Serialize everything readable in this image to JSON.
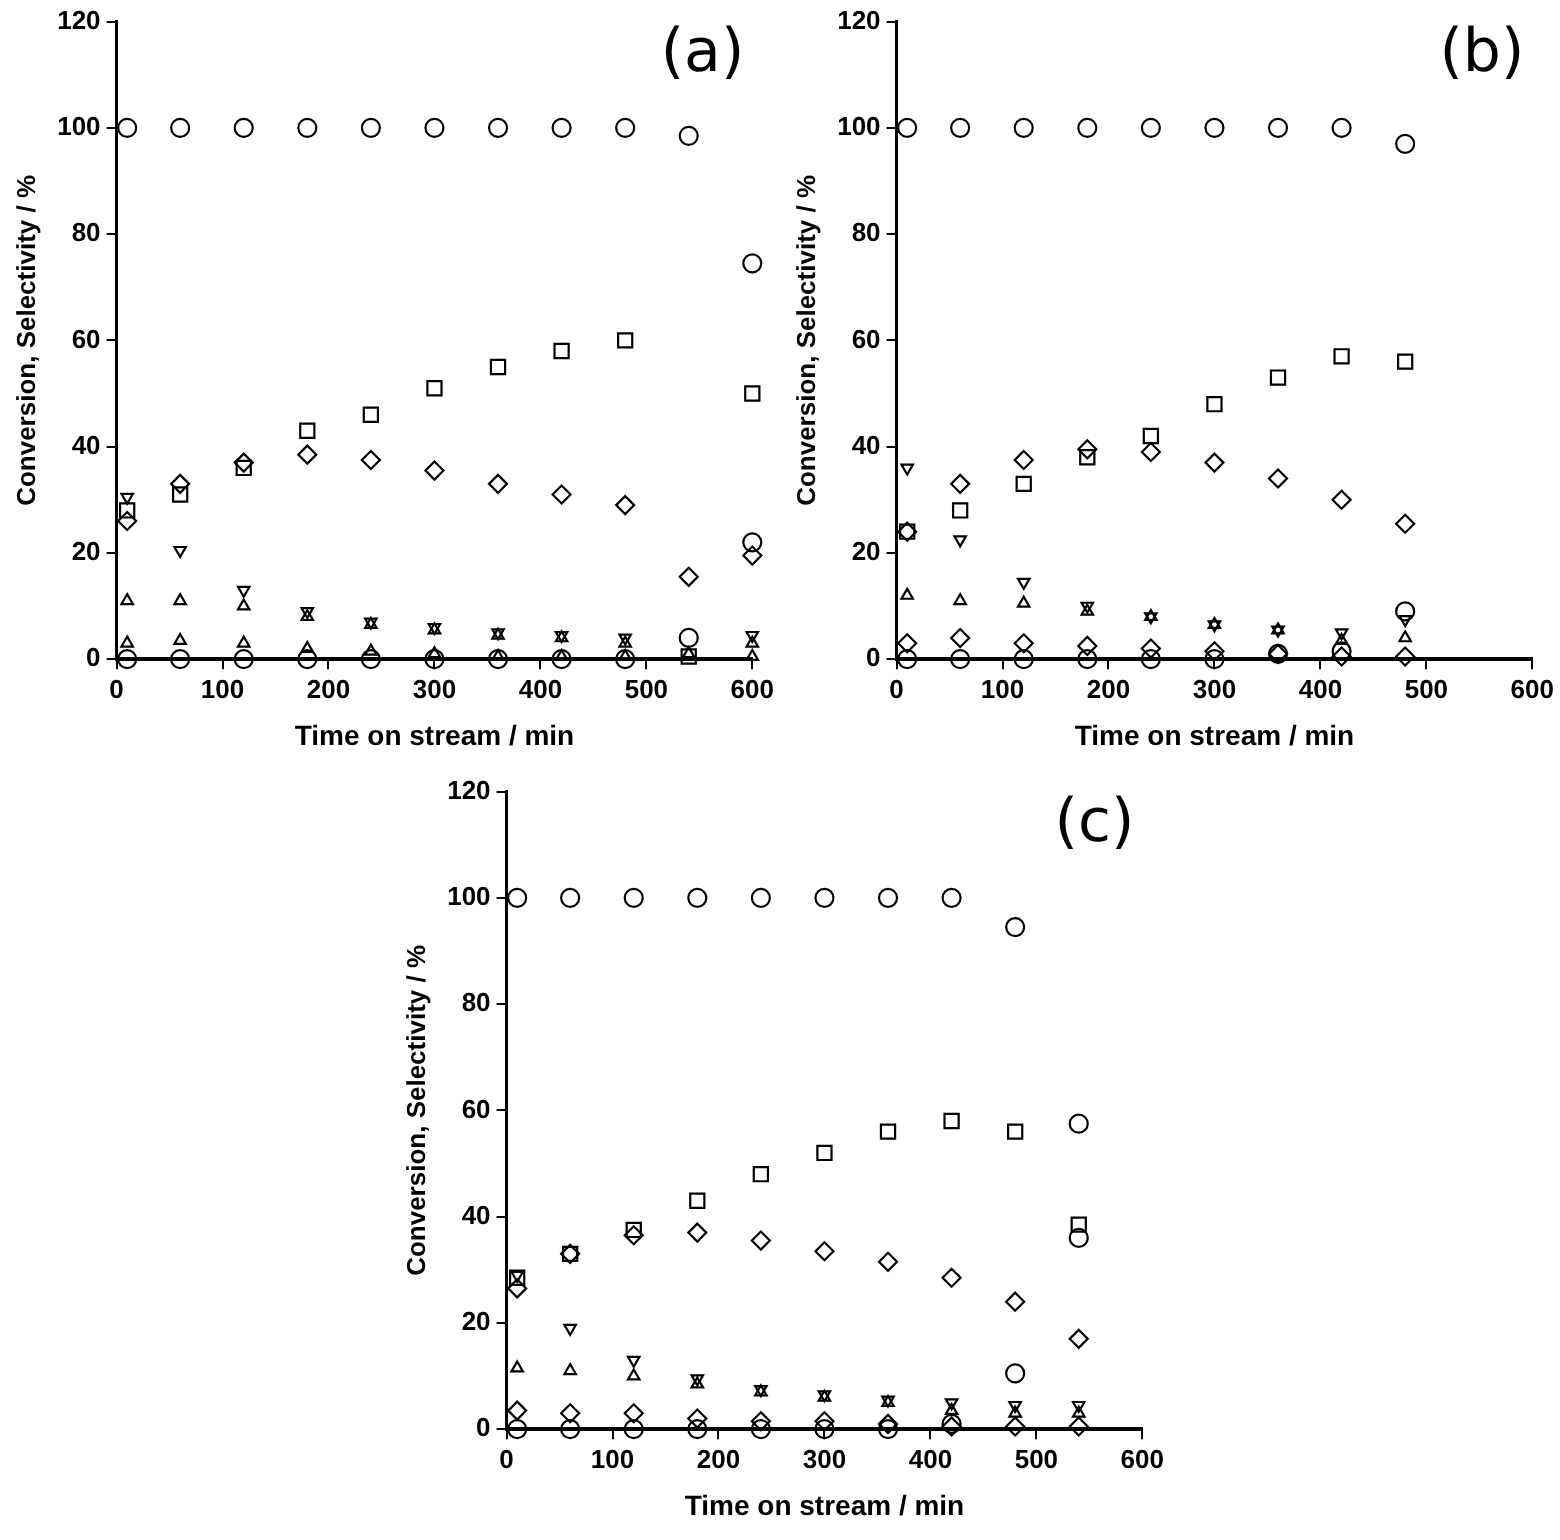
{
  "chart_data": [
    {
      "type": "scatter",
      "xlabel": "Time on stream / min",
      "ylabel": "Conversion, Selectivity / %",
      "annotations": [
        "(a)"
      ],
      "x": [
        10,
        60,
        120,
        180,
        240,
        300,
        360,
        420,
        480,
        540,
        600
      ],
      "xlim": [
        0,
        600
      ],
      "xticks": [
        0,
        100,
        200,
        300,
        400,
        500,
        600
      ],
      "ylim": [
        0,
        120
      ],
      "yticks": [
        0,
        20,
        40,
        60,
        80,
        100,
        120
      ],
      "grid": false,
      "legend": false,
      "series": [
        {
          "color": "#000000",
          "marker": "circle",
          "values": [
            100,
            100,
            100,
            100,
            100,
            100,
            100,
            100,
            100,
            98.5,
            74.5
          ]
        },
        {
          "color": "#000000",
          "marker": "square",
          "values": [
            28,
            31,
            36,
            43,
            46,
            51,
            55,
            58,
            60,
            0.5,
            50
          ]
        },
        {
          "color": "#000000",
          "marker": "diamond",
          "values": [
            26,
            33,
            37,
            38.5,
            37.5,
            35.5,
            33,
            31,
            29,
            15.5,
            19.5
          ]
        },
        {
          "color": "#000000",
          "marker": "triangle-down",
          "values": [
            30.5,
            20.5,
            13,
            9,
            7,
            6,
            5,
            4.5,
            4,
            null,
            4.5
          ]
        },
        {
          "color": "#000000",
          "marker": "triangle",
          "values": [
            11,
            11,
            10,
            8,
            6.5,
            5.5,
            4.5,
            4,
            3,
            1,
            3
          ]
        },
        {
          "color": "#000000",
          "marker": "triangle",
          "values": [
            3,
            3.5,
            3,
            2,
            1.5,
            1,
            0.5,
            0.5,
            0.5,
            null,
            0.5
          ]
        },
        {
          "color": "#000000",
          "marker": "circle",
          "values": [
            0,
            0,
            0,
            0,
            0,
            0,
            0,
            0,
            0,
            4,
            22
          ]
        }
      ]
    },
    {
      "type": "scatter",
      "xlabel": "Time on stream / min",
      "ylabel": "Conversion, Selectivity / %",
      "annotations": [
        "(b)"
      ],
      "x": [
        10,
        60,
        120,
        180,
        240,
        300,
        360,
        420,
        480
      ],
      "xlim": [
        0,
        600
      ],
      "xticks": [
        0,
        100,
        200,
        300,
        400,
        500,
        600
      ],
      "ylim": [
        0,
        120
      ],
      "yticks": [
        0,
        20,
        40,
        60,
        80,
        100,
        120
      ],
      "grid": false,
      "legend": false,
      "series": [
        {
          "color": "#000000",
          "marker": "circle",
          "values": [
            100,
            100,
            100,
            100,
            100,
            100,
            100,
            100,
            97
          ]
        },
        {
          "color": "#000000",
          "marker": "square",
          "values": [
            24,
            28,
            33,
            38,
            42,
            48,
            53,
            57,
            56
          ]
        },
        {
          "color": "#000000",
          "marker": "diamond",
          "values": [
            24,
            33,
            37.5,
            39.5,
            39,
            37,
            34,
            30,
            25.5
          ]
        },
        {
          "color": "#000000",
          "marker": "triangle-down",
          "values": [
            36,
            22.5,
            14.5,
            10,
            8,
            6.5,
            5.5,
            5,
            7.5
          ]
        },
        {
          "color": "#000000",
          "marker": "triangle",
          "values": [
            12,
            11,
            10.5,
            9,
            8,
            6.5,
            5.5,
            3.5,
            4
          ]
        },
        {
          "color": "#000000",
          "marker": "diamond",
          "values": [
            3,
            4,
            3,
            2.5,
            2,
            1.5,
            1,
            0.5,
            0.5
          ]
        },
        {
          "color": "#000000",
          "marker": "circle",
          "values": [
            0,
            0,
            0,
            0,
            0,
            0,
            1,
            1.5,
            9
          ]
        }
      ]
    },
    {
      "type": "scatter",
      "xlabel": "Time on stream / min",
      "ylabel": "Conversion, Selectivity / %",
      "annotations": [
        "(c)"
      ],
      "x": [
        10,
        60,
        120,
        180,
        240,
        300,
        360,
        420,
        480,
        540
      ],
      "xlim": [
        0,
        600
      ],
      "xticks": [
        0,
        100,
        200,
        300,
        400,
        500,
        600
      ],
      "ylim": [
        0,
        120
      ],
      "yticks": [
        0,
        20,
        40,
        60,
        80,
        100,
        120
      ],
      "grid": false,
      "legend": false,
      "series": [
        {
          "color": "#000000",
          "marker": "circle",
          "values": [
            100,
            100,
            100,
            100,
            100,
            100,
            100,
            100,
            94.5,
            57.5
          ]
        },
        {
          "color": "#000000",
          "marker": "square",
          "values": [
            28.5,
            33,
            37.5,
            43,
            48,
            52,
            56,
            58,
            56,
            38.5
          ]
        },
        {
          "color": "#000000",
          "marker": "diamond",
          "values": [
            26.5,
            33,
            36.5,
            37,
            35.5,
            33.5,
            31.5,
            28.5,
            24,
            17
          ]
        },
        {
          "color": "#000000",
          "marker": "triangle-down",
          "values": [
            29,
            19,
            13,
            9.5,
            7.5,
            6.5,
            5.5,
            5,
            4.5,
            4.5
          ]
        },
        {
          "color": "#000000",
          "marker": "triangle",
          "values": [
            11.5,
            11,
            10,
            8.5,
            7,
            6,
            5,
            3.5,
            3,
            3
          ]
        },
        {
          "color": "#000000",
          "marker": "diamond",
          "values": [
            3.5,
            3,
            3,
            2,
            1.5,
            1.5,
            1,
            0.5,
            0.5,
            0.5
          ]
        },
        {
          "color": "#000000",
          "marker": "circle",
          "values": [
            0,
            0,
            0,
            0,
            0,
            0,
            0,
            1,
            10.5,
            36
          ]
        }
      ]
    }
  ]
}
